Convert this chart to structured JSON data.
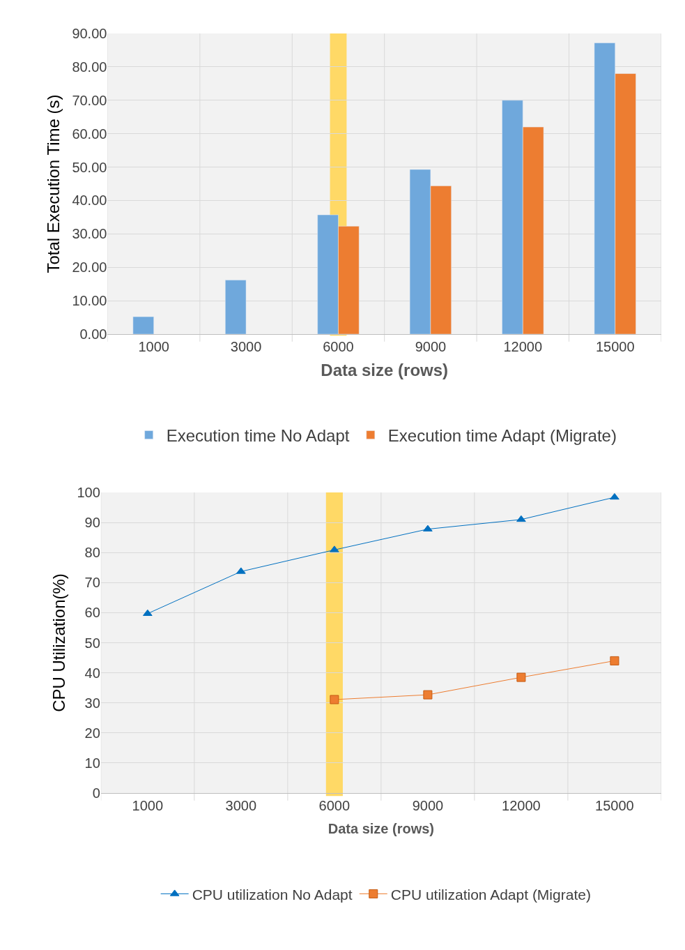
{
  "chart_data": [
    {
      "type": "bar",
      "xlabel": "Data size (rows)",
      "ylabel": "Total Execution Time (s)",
      "categories": [
        "1000",
        "3000",
        "6000",
        "9000",
        "12000",
        "15000"
      ],
      "series": [
        {
          "name": "Execution time No Adapt",
          "color": "#6fa8dc",
          "values": [
            5.2,
            16.2,
            35.7,
            49.3,
            70.0,
            87.2
          ]
        },
        {
          "name": "Execution time Adapt (Migrate)",
          "color": "#ed7d31",
          "values": [
            null,
            null,
            32.3,
            44.4,
            62.0,
            78.0
          ]
        }
      ],
      "ylim": [
        0,
        90
      ],
      "yticks": [
        {
          "value": 0,
          "label": "0.00"
        },
        {
          "value": 10,
          "label": "10.00"
        },
        {
          "value": 20,
          "label": "20.00"
        },
        {
          "value": 30,
          "label": "30.00"
        },
        {
          "value": 40,
          "label": "40.00"
        },
        {
          "value": 50,
          "label": "50.00"
        },
        {
          "value": 60,
          "label": "60.00"
        },
        {
          "value": 70,
          "label": "70.00"
        },
        {
          "value": 80,
          "label": "80.00"
        },
        {
          "value": 90,
          "label": "90.00"
        }
      ],
      "bands": [
        {
          "axis": "x",
          "from": "6000",
          "to": "6000",
          "color": "#ffd966"
        }
      ],
      "grid": true,
      "legend": "bottom"
    },
    {
      "type": "line",
      "xlabel": "Data size (rows)",
      "ylabel": "CPU Utilization(%)",
      "categories": [
        "1000",
        "3000",
        "6000",
        "9000",
        "12000",
        "15000"
      ],
      "series": [
        {
          "name": "CPU utilization No Adapt",
          "color": "#0070c0",
          "marker": "triangle",
          "values": [
            59.7,
            73.7,
            80.9,
            87.8,
            91.0,
            98.4
          ]
        },
        {
          "name": "CPU utilization Adapt (Migrate)",
          "color": "#ed7d31",
          "marker": "square",
          "values": [
            null,
            null,
            31.1,
            32.7,
            38.5,
            44.0
          ]
        }
      ],
      "ylim": [
        0,
        100
      ],
      "yticks": [
        0,
        10,
        20,
        30,
        40,
        50,
        60,
        70,
        80,
        90,
        100
      ],
      "bands": [
        {
          "axis": "x",
          "from": "6000",
          "to": "6000",
          "color": "#ffd966"
        }
      ],
      "grid": true,
      "legend": "bottom"
    }
  ]
}
